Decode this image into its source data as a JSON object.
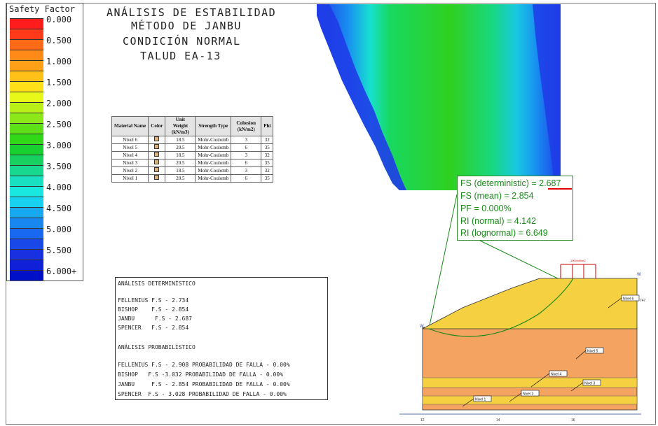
{
  "legend": {
    "title": "Safety Factor",
    "items": [
      {
        "label": "0.000",
        "color": "#ff1c1c"
      },
      {
        "label": "",
        "color": "#ff3a1a"
      },
      {
        "label": "0.500",
        "color": "#ff6a18"
      },
      {
        "label": "",
        "color": "#ff8a18"
      },
      {
        "label": "1.000",
        "color": "#ffa018"
      },
      {
        "label": "",
        "color": "#ffc018"
      },
      {
        "label": "1.500",
        "color": "#ffe018"
      },
      {
        "label": "",
        "color": "#e8f818"
      },
      {
        "label": "2.000",
        "color": "#b8f018"
      },
      {
        "label": "",
        "color": "#8ce818"
      },
      {
        "label": "2.500",
        "color": "#5ee018"
      },
      {
        "label": "",
        "color": "#30d818"
      },
      {
        "label": "3.000",
        "color": "#18d030"
      },
      {
        "label": "",
        "color": "#18d060"
      },
      {
        "label": "3.500",
        "color": "#18d890"
      },
      {
        "label": "",
        "color": "#18e0c0"
      },
      {
        "label": "4.000",
        "color": "#18e8e0"
      },
      {
        "label": "",
        "color": "#18d0f0"
      },
      {
        "label": "4.500",
        "color": "#18a8f0"
      },
      {
        "label": "",
        "color": "#1888f0"
      },
      {
        "label": "5.000",
        "color": "#1868f0"
      },
      {
        "label": "",
        "color": "#1848e8"
      },
      {
        "label": "5.500",
        "color": "#1830e0"
      },
      {
        "label": "",
        "color": "#1020d8"
      },
      {
        "label": "6.000+",
        "color": "#0010c8"
      }
    ]
  },
  "title": {
    "line1": "ANÁLISIS DE ESTABILIDAD",
    "line2": "MÉTODO DE JANBU",
    "line3": "CONDICIÓN NORMAL",
    "line4": "TALUD EA-13"
  },
  "materials": {
    "headers": [
      "Material Name",
      "Color",
      "Unit Weight (kN/m3)",
      "Strength Type",
      "Cohesion (kN/m2)",
      "Phi"
    ],
    "rows": [
      {
        "name": "Nivel 6",
        "unit_weight": "18.5",
        "strength": "Mohr-Coulomb",
        "cohesion": "3",
        "phi": "32"
      },
      {
        "name": "Nivel 5",
        "unit_weight": "20.5",
        "strength": "Mohr-Coulomb",
        "cohesion": "6",
        "phi": "35"
      },
      {
        "name": "Nivel 4",
        "unit_weight": "18.5",
        "strength": "Mohr-Coulomb",
        "cohesion": "3",
        "phi": "32"
      },
      {
        "name": "Nivel 3",
        "unit_weight": "20.5",
        "strength": "Mohr-Coulomb",
        "cohesion": "6",
        "phi": "35"
      },
      {
        "name": "Nivel 2",
        "unit_weight": "18.5",
        "strength": "Mohr-Coulomb",
        "cohesion": "3",
        "phi": "32"
      },
      {
        "name": "Nivel 1",
        "unit_weight": "20.5",
        "strength": "Mohr-Coulomb",
        "cohesion": "6",
        "phi": "35"
      }
    ]
  },
  "analysis": {
    "det_title": "ANÁLISIS DETERMINÍSTICO",
    "det_lines": [
      "FELLENIUS F.S - 2.734",
      "BISHOP    F.S - 2.854",
      "JANBU      F.S - 2.687",
      "SPENCER   F.S - 2.854"
    ],
    "prob_title": "ANÁLISIS PROBABILÍSTICO",
    "prob_lines": [
      "FELLENIUS F.S - 2.908 PROBABILIDAD DE FALLA - 0.00%",
      "BISHOP   F.S -3.032 PROBABILIDAD DE FALLA - 0.00%",
      "JANBU     F.S - 2.854 PROBABILIDAD DE FALLA - 0.00%",
      "SPENCER  F.S - 3.028 PROBABILIDAD DE FALLA - 0.00%"
    ]
  },
  "fs": {
    "deterministic": "FS (deterministic) = 2.687",
    "mean": "FS (mean) = 2.854",
    "pf": "PF = 0.000%",
    "ri_normal": "RI (normal) = 4.142",
    "ri_lognormal": "RI (lognormal) = 6.649"
  },
  "section": {
    "labels": [
      "Nivel 6",
      "Nivel 5",
      "Nivel 4",
      "Nivel 3",
      "Nivel 2",
      "Nivel 1"
    ],
    "load_label": "1000 kN/m2",
    "marker": "W",
    "elev_label": "747",
    "x_ticks": [
      "12",
      "14",
      "16"
    ]
  },
  "colors": {
    "soil_top": "#f5d040",
    "soil_mid": "#f4a460",
    "soil_band": "#f5d040",
    "callout_green": "#1a8a1a",
    "underline_red": "#e00000",
    "load_red": "#cc0000"
  }
}
